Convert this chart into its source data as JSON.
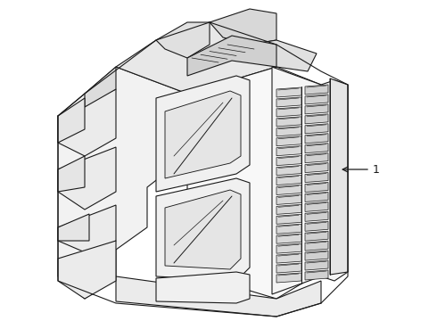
{
  "background_color": "#ffffff",
  "line_color": "#1a1a1a",
  "line_width": 0.8,
  "label_text": "1",
  "figsize": [
    4.9,
    3.6
  ],
  "dpi": 100,
  "xlim": [
    0,
    490
  ],
  "ylim": [
    0,
    360
  ]
}
